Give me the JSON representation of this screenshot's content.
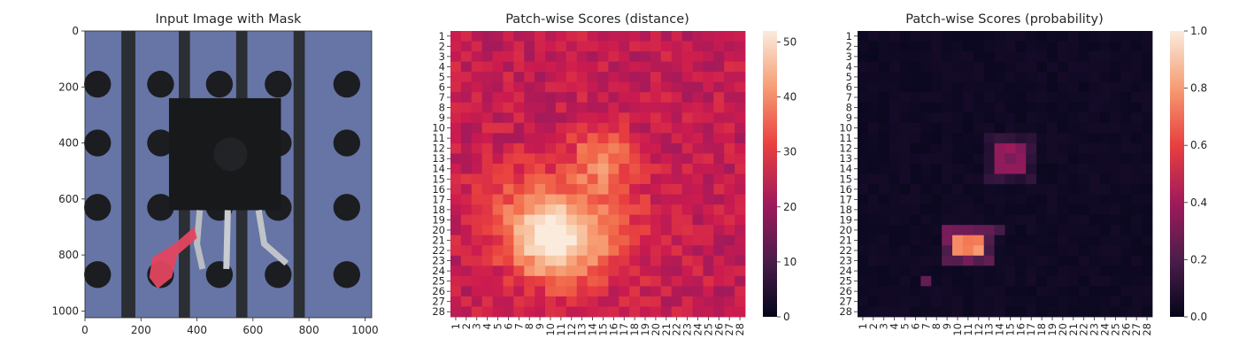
{
  "chart_data": [
    {
      "type": "image",
      "title": "Input Image with Mask",
      "xticks": [
        0,
        200,
        400,
        600,
        800,
        1000
      ],
      "yticks": [
        0,
        200,
        400,
        600,
        800,
        1000
      ],
      "xlim": [
        0,
        1024
      ],
      "ylim": [
        1024,
        0
      ],
      "colors": {
        "plate": "#6675a6",
        "slot": "#2b2e33",
        "hole": "#1c1d20",
        "component": "#18191b",
        "mask": "#e34660"
      }
    },
    {
      "type": "heatmap",
      "title": "Patch-wise Scores (distance)",
      "grid_size": 28,
      "tick_labels": [
        "1",
        "2",
        "3",
        "4",
        "5",
        "6",
        "7",
        "8",
        "9",
        "10",
        "11",
        "12",
        "13",
        "14",
        "15",
        "16",
        "17",
        "18",
        "19",
        "20",
        "21",
        "22",
        "23",
        "24",
        "25",
        "26",
        "27",
        "28"
      ],
      "colorbar_ticks": [
        0,
        10,
        20,
        30,
        40,
        50
      ],
      "vmin": 0,
      "vmax": 52,
      "colormap": "rocket",
      "hotspots": [
        {
          "row": 21,
          "col": 10,
          "value": 51
        },
        {
          "row": 13,
          "col": 15,
          "value": 40
        }
      ]
    },
    {
      "type": "heatmap",
      "title": "Patch-wise Scores (probability)",
      "grid_size": 28,
      "tick_labels": [
        "1",
        "2",
        "3",
        "4",
        "5",
        "6",
        "7",
        "8",
        "9",
        "10",
        "11",
        "12",
        "13",
        "14",
        "15",
        "16",
        "17",
        "18",
        "19",
        "20",
        "21",
        "22",
        "23",
        "24",
        "25",
        "26",
        "27",
        "28"
      ],
      "colorbar_ticks": [
        "0.0",
        "0.2",
        "0.4",
        "0.6",
        "0.8",
        "1.0"
      ],
      "vmin": 0,
      "vmax": 1,
      "colormap": "rocket",
      "hotspots": [
        {
          "row": 21,
          "col": 11,
          "value": 0.75
        },
        {
          "row": 13,
          "col": 15,
          "value": 0.4
        }
      ]
    }
  ]
}
